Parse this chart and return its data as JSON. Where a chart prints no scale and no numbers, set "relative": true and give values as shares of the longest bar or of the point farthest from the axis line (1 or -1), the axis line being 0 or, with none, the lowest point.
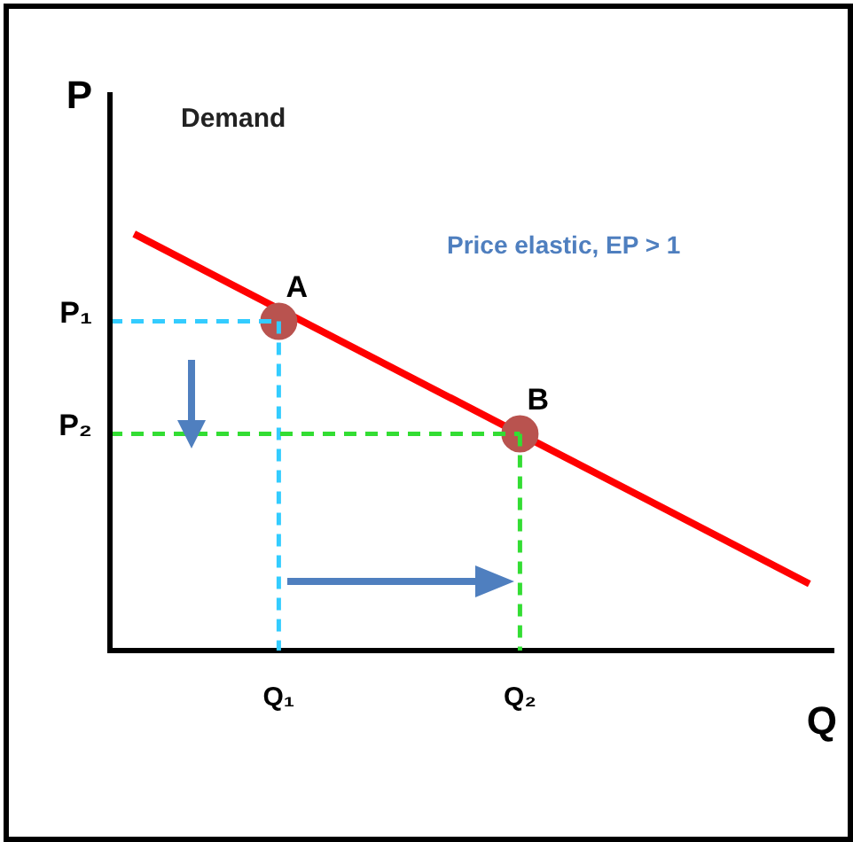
{
  "chart_data": {
    "type": "line",
    "relative": true,
    "xlabel": "Q",
    "ylabel": "P",
    "categories": [
      null,
      null,
      null,
      null,
      null,
      null,
      null,
      "Q₁",
      null,
      null,
      null,
      null,
      null,
      null,
      null,
      null,
      null,
      "Q₂",
      null,
      null,
      null,
      null,
      null,
      null,
      null,
      null,
      null,
      null,
      null,
      null,
      null
    ],
    "series": [
      {
        "type": "line",
        "color": "#ff0000",
        "values": [
          null,
          1,
          null,
          null,
          null,
          null,
          null,
          null,
          null,
          null,
          null,
          null,
          null,
          null,
          null,
          null,
          null,
          null,
          null,
          null,
          null,
          null,
          null,
          null,
          null,
          null,
          null,
          null,
          null,
          0.16,
          null
        ]
      },
      {
        "type": "scatter",
        "color": "#b9534f",
        "marker": "circle",
        "values": [
          null,
          null,
          null,
          null,
          null,
          null,
          null,
          0.79,
          null,
          null,
          null,
          null,
          null,
          null,
          null,
          null,
          null,
          0.52,
          null,
          null,
          null,
          null,
          null,
          null,
          null,
          null,
          null,
          null,
          null,
          null,
          null
        ]
      }
    ],
    "ref_lines": [
      {
        "axis": "y",
        "value": 0.79,
        "label": "P₁",
        "color": "#33ccff",
        "line_style": "dashed"
      },
      {
        "axis": "y",
        "value": 0.52,
        "label": "P₂",
        "color": "#33dd33",
        "line_style": "dashed"
      }
    ],
    "annotations": [
      "Demand",
      "Price elastic, EP > 1",
      {
        "text": "A",
        "x": "Q₁",
        "y": 0.79
      },
      {
        "text": "B",
        "x": "Q₂",
        "y": 0.52
      }
    ]
  }
}
